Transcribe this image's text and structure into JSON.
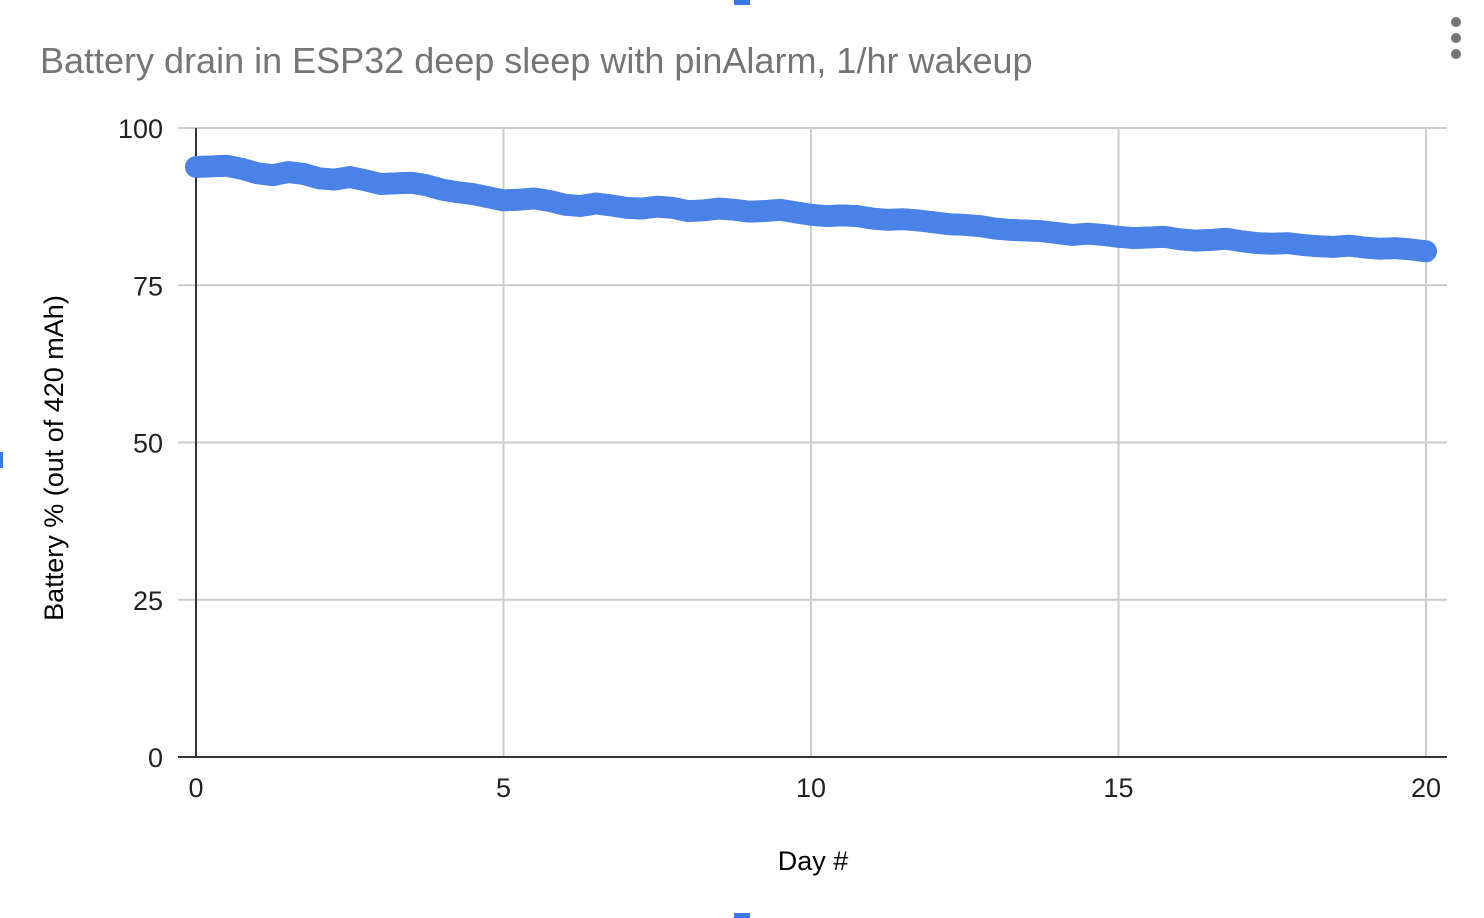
{
  "chart_data": {
    "type": "scatter",
    "title": "Battery drain in ESP32 deep sleep with pinAlarm, 1/hr wakeup",
    "xlabel": "Day #",
    "ylabel": "Battery % (out of 420 mAh)",
    "xlim": [
      0,
      20
    ],
    "ylim": [
      0,
      100
    ],
    "xticks": [
      "0",
      "5",
      "10",
      "15",
      "20"
    ],
    "yticks": [
      "0",
      "25",
      "50",
      "75",
      "100"
    ],
    "grid": true,
    "legend": "none",
    "color": "#4a82e8",
    "series": [
      {
        "x": [
          0,
          0.25,
          0.5,
          0.75,
          1,
          1.25,
          1.5,
          1.75,
          2,
          2.25,
          2.5,
          2.75,
          3,
          3.25,
          3.5,
          3.75,
          4,
          4.25,
          4.5,
          4.75,
          5,
          5.25,
          5.5,
          5.75,
          6,
          6.25,
          6.5,
          6.75,
          7,
          7.25,
          7.5,
          7.75,
          8,
          8.25,
          8.5,
          8.75,
          9,
          9.25,
          9.5,
          9.75,
          10,
          10.25,
          10.5,
          10.75,
          11,
          11.25,
          11.5,
          11.75,
          12,
          12.25,
          12.5,
          12.75,
          13,
          13.25,
          13.5,
          13.75,
          14,
          14.25,
          14.5,
          14.75,
          15,
          15.25,
          15.5,
          15.75,
          16,
          16.25,
          16.5,
          16.75,
          17,
          17.25,
          17.5,
          17.75,
          18,
          18.25,
          18.5,
          18.75,
          19,
          19.25,
          19.5,
          19.75,
          20
        ],
        "y": [
          93.8,
          93.9,
          94.0,
          93.5,
          92.8,
          92.5,
          93.0,
          92.7,
          92.0,
          91.8,
          92.2,
          91.7,
          91.1,
          91.2,
          91.3,
          90.9,
          90.2,
          89.8,
          89.5,
          89.0,
          88.5,
          88.6,
          88.8,
          88.4,
          87.8,
          87.6,
          88.0,
          87.7,
          87.3,
          87.2,
          87.5,
          87.3,
          86.8,
          86.9,
          87.2,
          87.0,
          86.7,
          86.8,
          87.0,
          86.6,
          86.2,
          86.0,
          86.1,
          86.0,
          85.6,
          85.4,
          85.5,
          85.3,
          85.0,
          84.7,
          84.6,
          84.4,
          84.0,
          83.8,
          83.7,
          83.6,
          83.3,
          83.0,
          83.2,
          83.0,
          82.7,
          82.5,
          82.6,
          82.7,
          82.3,
          82.1,
          82.2,
          82.4,
          82.0,
          81.7,
          81.6,
          81.7,
          81.4,
          81.2,
          81.1,
          81.3,
          81.0,
          80.8,
          80.9,
          80.7,
          80.4
        ]
      }
    ]
  }
}
